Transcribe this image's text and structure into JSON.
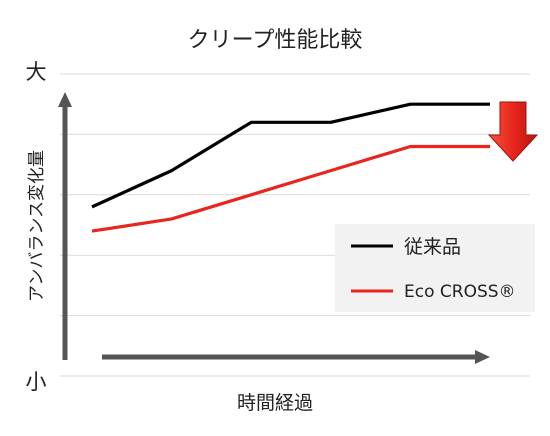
{
  "chart_data": {
    "type": "line",
    "title": "クリープ性能比較",
    "xlabel": "時間経過",
    "ylabel": "アンバランス変化量",
    "y_top_label": "大",
    "y_bottom_label": "小",
    "x": [
      0,
      1,
      2,
      3,
      4,
      5
    ],
    "xlim": [
      0,
      5
    ],
    "ylim": [
      0,
      5
    ],
    "grid": true,
    "legend_position": "right",
    "series": [
      {
        "name": "従来品",
        "color": "#000000",
        "values": [
          2.8,
          3.4,
          4.2,
          4.2,
          4.5,
          4.5
        ]
      },
      {
        "name": "Eco CROSS®",
        "color": "#e8261d",
        "values": [
          2.4,
          2.6,
          3.0,
          3.4,
          3.8,
          3.8
        ]
      }
    ],
    "annotation": {
      "icon": "down-arrow-icon",
      "color": "#e8261d",
      "meaning": "decrease"
    }
  }
}
